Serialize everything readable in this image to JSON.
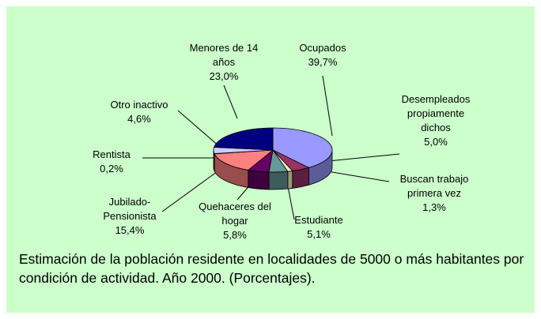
{
  "chart_data": {
    "type": "pie",
    "title": "Estimación de la población residente en localidades de 5000 o más habitantes por condición de actividad. Año 2000. (Porcentajes).",
    "categories": [
      "Ocupados",
      "Desempleados propiamente dichos",
      "Buscan trabajo primera vez",
      "Estudiante",
      "Quehaceres del hogar",
      "Jubilado-Pensionista",
      "Rentista",
      "Otro inactivo",
      "Menores de 14 años"
    ],
    "values": [
      39.7,
      5.0,
      1.3,
      5.1,
      5.8,
      15.4,
      0.2,
      4.6,
      23.0
    ],
    "value_labels": [
      "39,7%",
      "5,0%",
      "1,3%",
      "5,1%",
      "5,8%",
      "15,4%",
      "0,2%",
      "4,6%",
      "23,0%"
    ],
    "colors": [
      "#9999ff",
      "#993366",
      "#ffffcc",
      "#669999",
      "#660066",
      "#ff8080",
      "#0066cc",
      "#ccccff",
      "#000080"
    ]
  }
}
